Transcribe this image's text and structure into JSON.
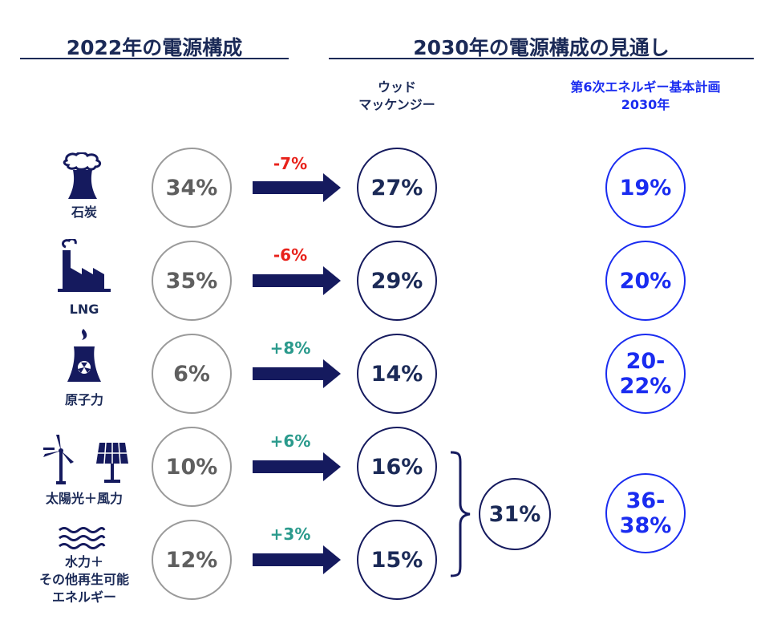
{
  "header": {
    "left_title": "2022年の電源構成",
    "right_title": "2030年の電源構成の見通し"
  },
  "columns": {
    "wm_label": "ウッド\nマッケンジー",
    "plan_label_line1": "第6次エネルギー基本計画",
    "plan_label_line2": "2030年"
  },
  "colors": {
    "navy": "#151a5e",
    "gray": "#9a9a9a",
    "blue": "#1a2cf0",
    "decrease": "#e8221b",
    "increase": "#2a9a8c"
  },
  "rows": [
    {
      "source": "石炭",
      "icon": "coal-plant-icon",
      "share_2022": "34%",
      "change": "-7%",
      "change_type": "decrease",
      "wm_2030": "27%",
      "plan_2030": "19%"
    },
    {
      "source": "LNG",
      "icon": "lng-factory-icon",
      "share_2022": "35%",
      "change": "-6%",
      "change_type": "decrease",
      "wm_2030": "29%",
      "plan_2030": "20%"
    },
    {
      "source": "原子力",
      "icon": "nuclear-plant-icon",
      "share_2022": "6%",
      "change": "+8%",
      "change_type": "increase",
      "wm_2030": "14%",
      "plan_2030": "20-\n22%"
    },
    {
      "source": "太陽光＋風力",
      "icon": "wind-solar-icon",
      "share_2022": "10%",
      "change": "+6%",
      "change_type": "increase",
      "wm_2030": "16%"
    },
    {
      "source": "水力＋\nその他再生可能\nエネルギー",
      "icon": "water-waves-icon",
      "share_2022": "12%",
      "change": "+3%",
      "change_type": "increase",
      "wm_2030": "15%"
    }
  ],
  "renewables_total": {
    "wm_2030": "31%",
    "plan_2030": "36-\n38%"
  }
}
